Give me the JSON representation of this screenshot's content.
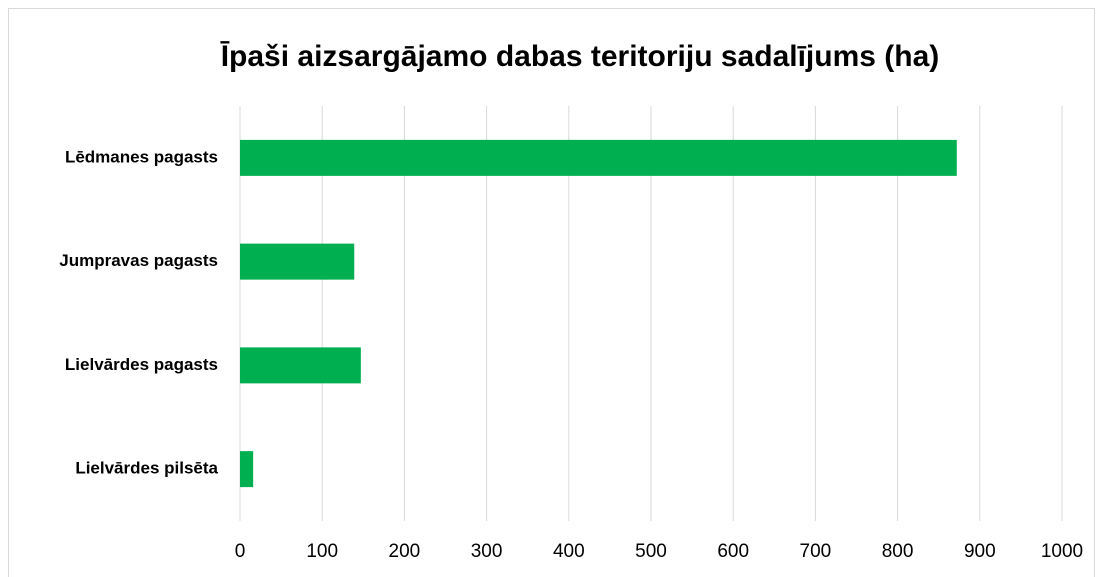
{
  "chart_data": {
    "type": "bar",
    "orientation": "horizontal",
    "title": "Īpaši aizsargājamo dabas teritoriju sadalījums  (ha)",
    "categories": [
      "Lēdmanes pagasts",
      "Jumpravas pagasts",
      "Lielvārdes pagasts",
      "Lielvārdes pilsēta"
    ],
    "values": [
      872,
      139,
      147,
      16
    ],
    "color": "#00b050",
    "xlim": [
      0,
      1000
    ],
    "xticks": [
      0,
      100,
      200,
      300,
      400,
      500,
      600,
      700,
      800,
      900,
      1000
    ],
    "grid": true
  }
}
